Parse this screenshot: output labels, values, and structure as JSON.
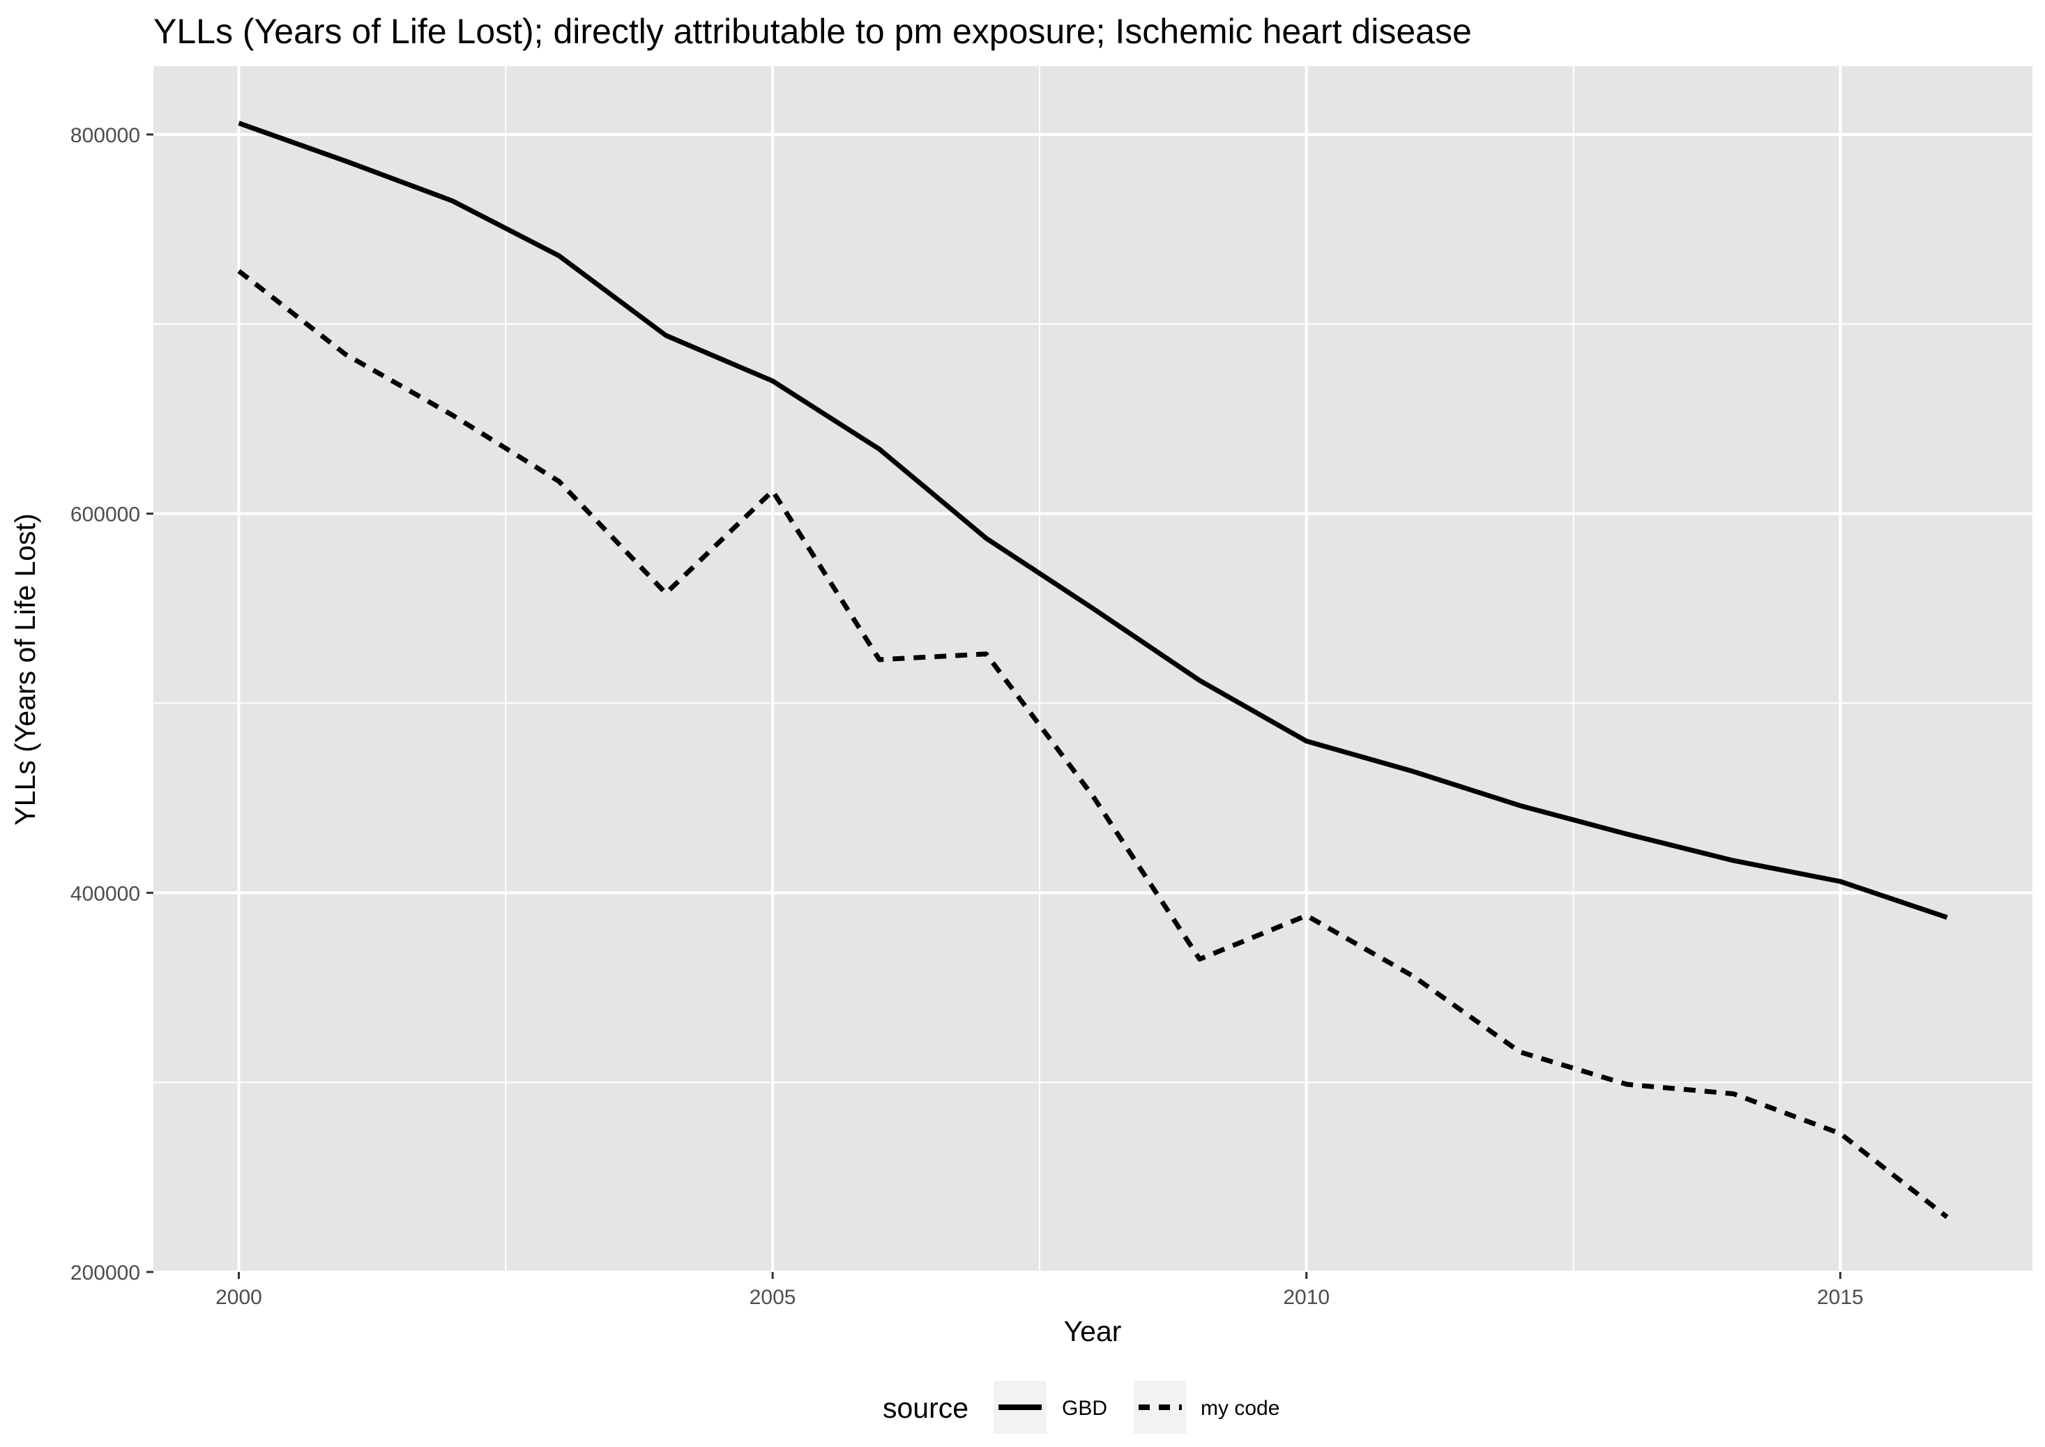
{
  "chart_data": {
    "type": "line",
    "title": "YLLs (Years of Life Lost); directly attributable to pm exposure; Ischemic heart disease",
    "xlabel": "Year",
    "ylabel": "YLLs (Years of Life Lost)",
    "x": [
      2000,
      2001,
      2002,
      2003,
      2004,
      2005,
      2006,
      2007,
      2008,
      2009,
      2010,
      2011,
      2012,
      2013,
      2014,
      2015,
      2016
    ],
    "series": [
      {
        "name": "GBD",
        "line_style": "solid",
        "values": [
          806000,
          786000,
          765000,
          736000,
          694000,
          670000,
          634000,
          587000,
          550000,
          512000,
          480000,
          464000,
          446000,
          431000,
          417000,
          406000,
          387000
        ]
      },
      {
        "name": "my code",
        "line_style": "dashed",
        "values": [
          728000,
          684000,
          652000,
          617000,
          558000,
          612000,
          523000,
          526000,
          451000,
          365000,
          388000,
          356000,
          316000,
          299000,
          294000,
          273000,
          229000
        ]
      }
    ],
    "xlim": [
      1999.2,
      2016.8
    ],
    "ylim": [
      200000,
      836000
    ],
    "x_ticks": [
      2000,
      2005,
      2010,
      2015
    ],
    "x_tick_labels": [
      "2000",
      "2005",
      "2010",
      "2015"
    ],
    "y_ticks": [
      200000,
      400000,
      600000,
      800000
    ],
    "y_tick_labels": [
      "200000",
      "400000",
      "600000",
      "800000"
    ],
    "grid": true,
    "legend": {
      "title": "source",
      "position": "bottom",
      "entries": [
        "GBD",
        "my code"
      ]
    },
    "colors": {
      "panel_background": "#e5e5e5",
      "grid": "#ffffff",
      "line": "#000000"
    }
  }
}
